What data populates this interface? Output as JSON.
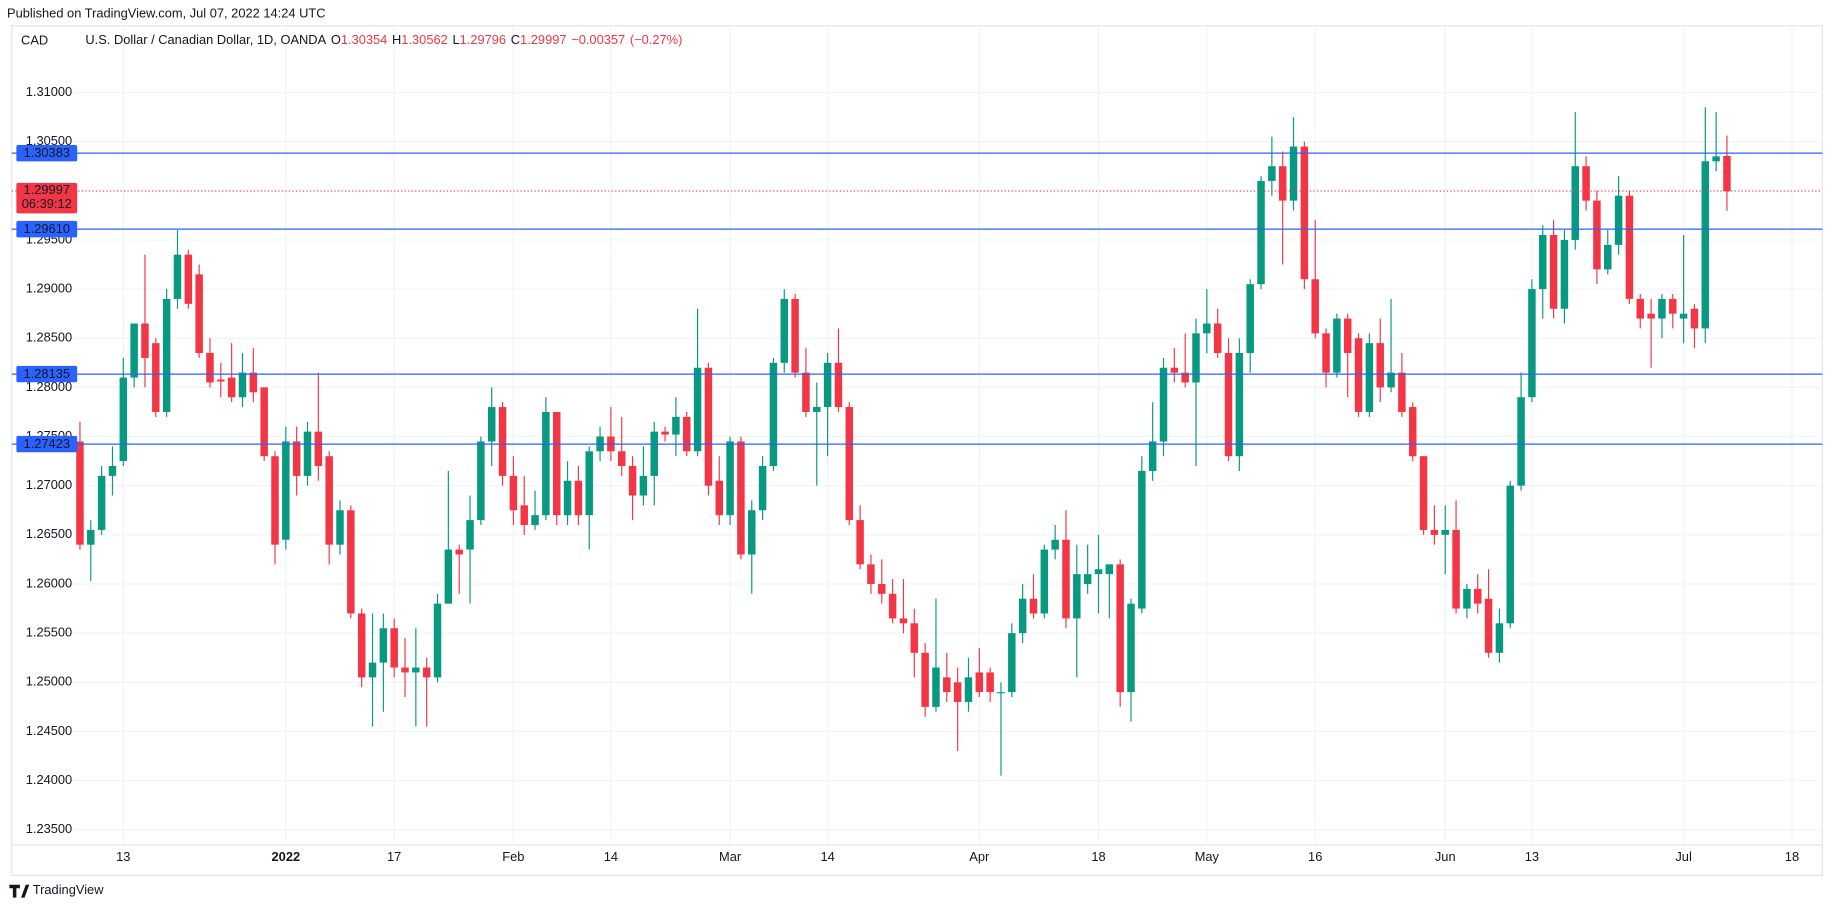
{
  "header": "Published on TradingView.com, Jul 07, 2022 14:24 UTC",
  "footer": "TradingView",
  "chart_data": {
    "type": "candlestick",
    "currency": "CAD",
    "title": "U.S. Dollar / Canadian Dollar, 1D, OANDA",
    "legend": {
      "items": [
        {
          "prefix": "O",
          "value": 1.30354
        },
        {
          "prefix": "H",
          "value": 1.30562
        },
        {
          "prefix": "L",
          "value": 1.29796
        },
        {
          "prefix": "C",
          "value": 1.29997
        }
      ],
      "change": {
        "value": -0.00357,
        "label": "−0.00357"
      },
      "change_pct": {
        "value": -0.27,
        "label": "(−0.27%)"
      }
    },
    "up_color": "#089981",
    "down_color": "#f23645",
    "grid": true,
    "open": [
      1.2745,
      1.264,
      1.2655,
      1.271,
      1.2725,
      1.281,
      1.2865,
      1.2845,
      1.2775,
      1.289,
      1.2935,
      1.2915,
      1.2835,
      1.2808,
      1.281,
      1.279,
      1.2815,
      1.28,
      1.273,
      1.2645,
      1.2745,
      1.271,
      1.2755,
      1.273,
      1.264,
      1.2675,
      1.257,
      1.2505,
      1.252,
      1.2555,
      1.2515,
      1.251,
      1.2515,
      1.2505,
      1.258,
      1.2635,
      1.2635,
      1.2665,
      1.2745,
      1.278,
      1.271,
      1.268,
      1.266,
      1.267,
      1.2775,
      1.267,
      1.2705,
      1.267,
      1.2735,
      1.275,
      1.2735,
      1.272,
      1.269,
      1.271,
      1.2755,
      1.2752,
      1.277,
      1.2735,
      1.282,
      1.2705,
      1.267,
      1.2745,
      1.263,
      1.2675,
      1.272,
      1.2825,
      1.289,
      1.2815,
      1.2775,
      1.278,
      1.2825,
      1.278,
      1.2665,
      1.262,
      1.26,
      1.259,
      1.2565,
      1.256,
      1.253,
      1.2475,
      1.2505,
      1.25,
      1.248,
      1.251,
      1.251,
      1.249,
      1.249,
      1.255,
      1.2585,
      1.257,
      1.2635,
      1.2645,
      1.2565,
      1.26,
      1.261,
      1.261,
      1.262,
      1.249,
      1.2575,
      1.2715,
      1.2745,
      1.282,
      1.2815,
      1.2805,
      1.2855,
      1.2865,
      1.2835,
      1.273,
      1.2835,
      1.2905,
      1.301,
      1.3025,
      1.299,
      1.3045,
      1.291,
      1.2855,
      1.2815,
      1.287,
      1.285,
      1.2775,
      1.2845,
      1.28,
      1.2815,
      1.278,
      1.273,
      1.2655,
      1.265,
      1.2655,
      1.2575,
      1.2595,
      1.2585,
      1.253,
      1.256,
      1.27,
      1.279,
      1.29,
      1.2955,
      1.288,
      1.295,
      1.3025,
      1.299,
      1.292,
      1.2945,
      1.2995,
      1.289,
      1.2875,
      1.287,
      1.289,
      1.287,
      1.288,
      1.286,
      1.303,
      1.30354
    ],
    "high": [
      1.2765,
      1.2665,
      1.272,
      1.274,
      1.283,
      1.2865,
      1.2935,
      1.285,
      1.29,
      1.296,
      1.294,
      1.2925,
      1.285,
      1.2825,
      1.2845,
      1.2835,
      1.284,
      1.28,
      1.2735,
      1.276,
      1.276,
      1.2765,
      1.2815,
      1.2735,
      1.2685,
      1.268,
      1.2575,
      1.257,
      1.257,
      1.2565,
      1.2545,
      1.2555,
      1.2525,
      1.259,
      1.2715,
      1.264,
      1.269,
      1.275,
      1.28,
      1.2785,
      1.273,
      1.271,
      1.2695,
      1.279,
      1.2775,
      1.2725,
      1.272,
      1.274,
      1.276,
      1.278,
      1.277,
      1.273,
      1.274,
      1.2765,
      1.276,
      1.279,
      1.2775,
      1.288,
      1.2825,
      1.273,
      1.275,
      1.275,
      1.2685,
      1.273,
      1.283,
      1.29,
      1.2895,
      1.284,
      1.2805,
      1.2835,
      1.286,
      1.2785,
      1.268,
      1.263,
      1.2625,
      1.2605,
      1.2605,
      1.2575,
      1.254,
      1.2585,
      1.253,
      1.2515,
      1.2525,
      1.2535,
      1.2515,
      1.25,
      1.256,
      1.26,
      1.261,
      1.264,
      1.266,
      1.2675,
      1.264,
      1.264,
      1.265,
      1.262,
      1.2625,
      1.2585,
      1.273,
      1.2785,
      1.283,
      1.284,
      1.2855,
      1.287,
      1.29,
      1.288,
      1.285,
      1.285,
      1.291,
      1.3015,
      1.3055,
      1.304,
      1.3075,
      1.305,
      1.297,
      1.286,
      1.2875,
      1.2875,
      1.2855,
      1.2855,
      1.287,
      1.289,
      1.2835,
      1.2785,
      1.273,
      1.268,
      1.268,
      1.2685,
      1.26,
      1.261,
      1.2615,
      1.2575,
      1.2705,
      1.2815,
      1.291,
      1.2965,
      1.297,
      1.296,
      1.308,
      1.3035,
      1.3,
      1.296,
      1.3015,
      1.3,
      1.2895,
      1.289,
      1.2895,
      1.2895,
      1.2955,
      1.2885,
      1.3085,
      1.308,
      1.30562
    ],
    "low": [
      1.2635,
      1.2603,
      1.265,
      1.269,
      1.272,
      1.28,
      1.28,
      1.277,
      1.277,
      1.288,
      1.288,
      1.283,
      1.28,
      1.279,
      1.2785,
      1.278,
      1.2785,
      1.2725,
      1.262,
      1.2635,
      1.269,
      1.27,
      1.2705,
      1.262,
      1.263,
      1.2565,
      1.2495,
      1.2455,
      1.247,
      1.2505,
      1.2485,
      1.2455,
      1.2455,
      1.25,
      1.258,
      1.259,
      1.258,
      1.266,
      1.272,
      1.27,
      1.266,
      1.265,
      1.2655,
      1.2665,
      1.266,
      1.266,
      1.266,
      1.2635,
      1.2725,
      1.2725,
      1.271,
      1.2665,
      1.268,
      1.268,
      1.2745,
      1.273,
      1.273,
      1.273,
      1.269,
      1.266,
      1.266,
      1.2625,
      1.259,
      1.2665,
      1.2715,
      1.2815,
      1.281,
      1.277,
      1.27,
      1.273,
      1.2775,
      1.266,
      1.2615,
      1.259,
      1.258,
      1.256,
      1.255,
      1.2505,
      1.2465,
      1.247,
      1.248,
      1.243,
      1.247,
      1.2485,
      1.248,
      1.2405,
      1.2485,
      1.254,
      1.2565,
      1.2565,
      1.2625,
      1.2555,
      1.2505,
      1.259,
      1.257,
      1.2565,
      1.2475,
      1.246,
      1.257,
      1.2705,
      1.273,
      1.2805,
      1.28,
      1.272,
      1.2835,
      1.283,
      1.2725,
      1.2715,
      1.2815,
      1.29,
      1.2995,
      1.2925,
      1.298,
      1.29,
      1.285,
      1.28,
      1.281,
      1.279,
      1.277,
      1.277,
      1.2785,
      1.2795,
      1.277,
      1.2725,
      1.265,
      1.264,
      1.261,
      1.257,
      1.2565,
      1.257,
      1.2525,
      1.252,
      1.2555,
      1.2695,
      1.2785,
      1.287,
      1.287,
      1.2865,
      1.294,
      1.298,
      1.2905,
      1.2915,
      1.2935,
      1.2885,
      1.286,
      1.282,
      1.285,
      1.286,
      1.2845,
      1.284,
      1.2845,
      1.302,
      1.29796
    ],
    "close": [
      1.264,
      1.2655,
      1.271,
      1.272,
      1.281,
      1.2865,
      1.283,
      1.2775,
      1.289,
      1.2935,
      1.2885,
      1.2835,
      1.2805,
      1.2806,
      1.279,
      1.2815,
      1.2795,
      1.273,
      1.264,
      1.2745,
      1.271,
      1.2755,
      1.272,
      1.264,
      1.2675,
      1.257,
      1.2505,
      1.252,
      1.2555,
      1.2515,
      1.251,
      1.2515,
      1.2505,
      1.258,
      1.2635,
      1.263,
      1.2665,
      1.2745,
      1.278,
      1.271,
      1.2675,
      1.266,
      1.267,
      1.2775,
      1.267,
      1.2705,
      1.267,
      1.2735,
      1.275,
      1.2735,
      1.272,
      1.269,
      1.271,
      1.2755,
      1.2752,
      1.277,
      1.2735,
      1.282,
      1.27,
      1.267,
      1.2745,
      1.263,
      1.2675,
      1.272,
      1.2825,
      1.289,
      1.2815,
      1.2775,
      1.278,
      1.2825,
      1.278,
      1.2665,
      1.262,
      1.26,
      1.259,
      1.2565,
      1.256,
      1.253,
      1.2475,
      1.2515,
      1.249,
      1.248,
      1.2505,
      1.249,
      1.249,
      1.249,
      1.255,
      1.2585,
      1.257,
      1.2635,
      1.2645,
      1.2565,
      1.261,
      1.261,
      1.2615,
      1.262,
      1.249,
      1.258,
      1.2715,
      1.2745,
      1.282,
      1.2815,
      1.2805,
      1.2855,
      1.2865,
      1.2835,
      1.273,
      1.2835,
      1.2905,
      1.301,
      1.3025,
      1.299,
      1.3045,
      1.291,
      1.2855,
      1.2815,
      1.287,
      1.2835,
      1.2775,
      1.2845,
      1.28,
      1.2815,
      1.2775,
      1.273,
      1.2655,
      1.265,
      1.2655,
      1.2575,
      1.2595,
      1.258,
      1.253,
      1.256,
      1.27,
      1.279,
      1.29,
      1.2955,
      1.288,
      1.295,
      1.3025,
      1.299,
      1.292,
      1.2945,
      1.2995,
      1.289,
      1.287,
      1.287,
      1.289,
      1.2875,
      1.2875,
      1.286,
      1.303,
      1.3035,
      1.29997
    ],
    "xlim": [
      -6.3,
      160.8
    ],
    "xticks": [
      {
        "value": 4,
        "label": "13"
      },
      {
        "value": 19,
        "label": "2022"
      },
      {
        "value": 29,
        "label": "17"
      },
      {
        "value": 40,
        "label": "Feb"
      },
      {
        "value": 49,
        "label": "14"
      },
      {
        "value": 60,
        "label": "Mar"
      },
      {
        "value": 69,
        "label": "14"
      },
      {
        "value": 83,
        "label": "Apr"
      },
      {
        "value": 94,
        "label": "18"
      },
      {
        "value": 104,
        "label": "May"
      },
      {
        "value": 114,
        "label": "16"
      },
      {
        "value": 126,
        "label": "Jun"
      },
      {
        "value": 134,
        "label": "13"
      },
      {
        "value": 148,
        "label": "Jul"
      },
      {
        "value": 158,
        "label": "18"
      }
    ],
    "ylim": [
      1.23345,
      1.31679
    ],
    "yticks": [
      {
        "value": 1.31,
        "label": "1.31000"
      },
      {
        "value": 1.305,
        "label": "1.30500"
      },
      {
        "value": 1.3,
        "label": "1.30000"
      },
      {
        "value": 1.295,
        "label": "1.29500"
      },
      {
        "value": 1.29,
        "label": "1.29000"
      },
      {
        "value": 1.285,
        "label": "1.28500"
      },
      {
        "value": 1.28,
        "label": "1.28000"
      },
      {
        "value": 1.275,
        "label": "1.27500"
      },
      {
        "value": 1.27,
        "label": "1.27000"
      },
      {
        "value": 1.265,
        "label": "1.26500"
      },
      {
        "value": 1.26,
        "label": "1.26000"
      },
      {
        "value": 1.255,
        "label": "1.25500"
      },
      {
        "value": 1.25,
        "label": "1.25000"
      },
      {
        "value": 1.245,
        "label": "1.24500"
      },
      {
        "value": 1.24,
        "label": "1.24000"
      },
      {
        "value": 1.235,
        "label": "1.23500"
      }
    ],
    "hlines": [
      {
        "value": 1.30383,
        "label": "1.30383"
      },
      {
        "value": 1.2961,
        "label": "1.29610"
      },
      {
        "value": 1.28135,
        "label": "1.28135"
      },
      {
        "value": 1.27423,
        "label": "1.27423"
      }
    ],
    "hline_color": "#2962ff",
    "last_price": {
      "value": 1.29997,
      "label": "1.29997",
      "countdown": "06:39:12"
    }
  }
}
